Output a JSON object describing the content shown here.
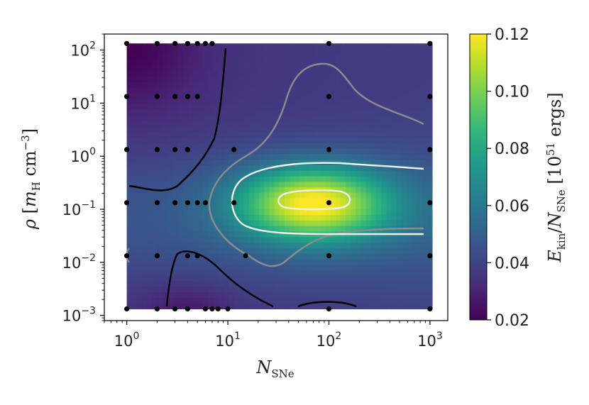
{
  "chart_data": {
    "type": "heatmap",
    "xlabel": "N_SNe",
    "ylabel": "ρ [m_H cm^-3]",
    "colorbar_label": "E_kin / N_SNe [10^51 ergs]",
    "x_scale": "log",
    "y_scale": "log",
    "xlim": [
      0.6,
      1500
    ],
    "ylim": [
      0.0008,
      200
    ],
    "x_ticks": [
      {
        "value": 1,
        "label": "10",
        "exp": "0"
      },
      {
        "value": 10,
        "label": "10",
        "exp": "1"
      },
      {
        "value": 100,
        "label": "10",
        "exp": "2"
      },
      {
        "value": 1000,
        "label": "10",
        "exp": "3"
      }
    ],
    "y_ticks": [
      {
        "value": 0.001,
        "label": "10",
        "exp": "−3"
      },
      {
        "value": 0.01,
        "label": "10",
        "exp": "−2"
      },
      {
        "value": 0.1,
        "label": "10",
        "exp": "−1"
      },
      {
        "value": 1,
        "label": "10",
        "exp": "0"
      },
      {
        "value": 10,
        "label": "10",
        "exp": "1"
      },
      {
        "value": 100,
        "label": "10",
        "exp": "2"
      }
    ],
    "colorbar": {
      "range": [
        0.02,
        0.12
      ],
      "colormap": "viridis",
      "ticks": [
        "0.02",
        "0.04",
        "0.06",
        "0.08",
        "0.10",
        "0.12"
      ]
    },
    "contour_levels": [
      {
        "value": 0.03,
        "color": "#000000"
      },
      {
        "value": 0.05,
        "color": "#8c8c8c"
      },
      {
        "value": 0.08,
        "color": "#f0f0f0"
      },
      {
        "value": 0.1,
        "color": "#f0f0f0"
      }
    ],
    "sample_points": [
      [
        1,
        133
      ],
      [
        2,
        133
      ],
      [
        3,
        133
      ],
      [
        4,
        133
      ],
      [
        5,
        133
      ],
      [
        6,
        133
      ],
      [
        7,
        133
      ],
      [
        100,
        133
      ],
      [
        1000,
        133
      ],
      [
        1,
        13.3
      ],
      [
        2,
        13.3
      ],
      [
        3,
        13.3
      ],
      [
        4,
        13.3
      ],
      [
        5,
        13.3
      ],
      [
        100,
        13.3
      ],
      [
        1000,
        13.3
      ],
      [
        1,
        1.33
      ],
      [
        2,
        1.33
      ],
      [
        3,
        1.33
      ],
      [
        4,
        1.33
      ],
      [
        11.5,
        1.33
      ],
      [
        100,
        1.33
      ],
      [
        1000,
        1.33
      ],
      [
        1,
        0.133
      ],
      [
        2,
        0.133
      ],
      [
        3,
        0.133
      ],
      [
        4,
        0.133
      ],
      [
        5,
        0.133
      ],
      [
        6,
        0.133
      ],
      [
        11.5,
        0.133
      ],
      [
        100,
        0.133
      ],
      [
        1000,
        0.133
      ],
      [
        1,
        0.0133
      ],
      [
        2,
        0.0133
      ],
      [
        4,
        0.0133
      ],
      [
        5,
        0.0133
      ],
      [
        15,
        0.0133
      ],
      [
        100,
        0.0133
      ],
      [
        1000,
        0.0133
      ],
      [
        1,
        0.00133
      ],
      [
        2,
        0.00133
      ],
      [
        3,
        0.00133
      ],
      [
        4,
        0.00133
      ],
      [
        6,
        0.00133
      ],
      [
        7,
        0.00133
      ],
      [
        8,
        0.00133
      ],
      [
        10,
        0.00133
      ],
      [
        100,
        0.00133
      ],
      [
        1000,
        0.00133
      ]
    ]
  }
}
